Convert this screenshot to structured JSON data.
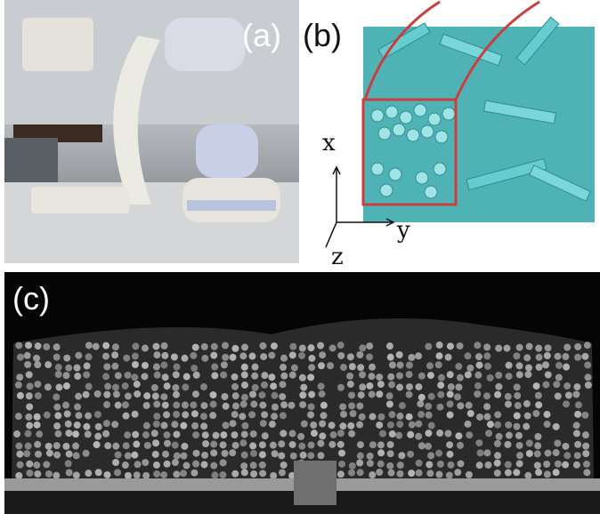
{
  "panels": {
    "a": {
      "label": "(a)"
    },
    "b": {
      "label": "(b)",
      "axes": {
        "x": "x",
        "y": "y",
        "z": "z"
      }
    },
    "c": {
      "label": "(c)"
    }
  },
  "colors": {
    "cylinder": "#5fc7c9",
    "highlight_box": "#cc3d3d",
    "ct_background": "#050505",
    "ct_particles": "#bfbfbf"
  }
}
